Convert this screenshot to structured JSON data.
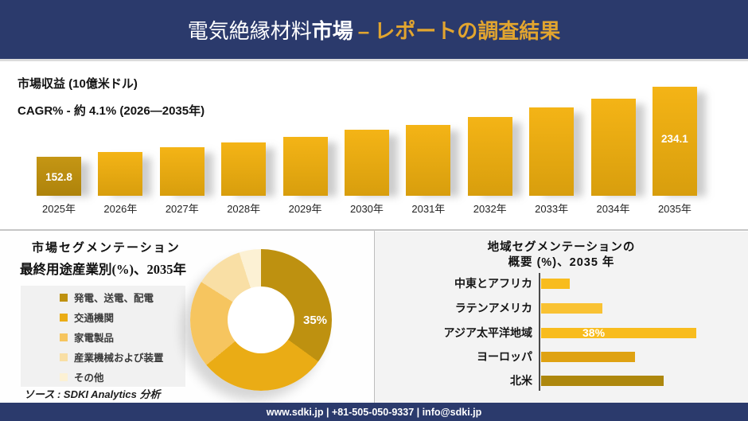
{
  "header": {
    "title_regular": "電気絶縁材料",
    "title_bold": "市場",
    "separator": "–",
    "title_accent": "レポートの調査結果",
    "bg_color": "#2B3A6C",
    "accent_color": "#E2A52F"
  },
  "chart_data": [
    {
      "id": "market-revenue-by-year",
      "type": "bar",
      "title": "市場収益 (10億米ドル)",
      "subtitle": "CAGR% - 約 4.1% (2026―2035年)",
      "categories": [
        "2025年",
        "2026年",
        "2027年",
        "2028年",
        "2029年",
        "2030年",
        "2031年",
        "2032年",
        "2033年",
        "2034年",
        "2035年"
      ],
      "values": [
        152.8,
        158.3,
        163.9,
        169.4,
        175.9,
        184.2,
        189.7,
        199.0,
        210.1,
        220.2,
        234.1
      ],
      "point_labels": {
        "0": "152.8",
        "10": "234.1"
      },
      "axis_hidden": true,
      "baseline_truncated": true,
      "colors": {
        "first": [
          "#C59614",
          "#AE830B"
        ],
        "rest": [
          "#F4B416",
          "#D89E0D"
        ]
      },
      "value_label_color": "#ffffff"
    },
    {
      "id": "end-use-segmentation",
      "type": "pie",
      "title": "市場セグメンテーション",
      "subtitle": "最終用途産業別(%)、2035年",
      "labels": [
        "発電、送電、配電",
        "交通機関",
        "家電製品",
        "産業機械および装置",
        "その他"
      ],
      "slugs": [
        "power-generation-transmission-distribution",
        "transportation",
        "home-appliances",
        "industrial-machinery-equipment",
        "others"
      ],
      "values": [
        35,
        29,
        20,
        11,
        5
      ],
      "point_labels": {
        "0": "35%"
      },
      "colors": [
        "#BE9110",
        "#EAAC15",
        "#F6C55F",
        "#F9DFA5",
        "#FCF1D4"
      ],
      "donut": true,
      "legend_position": "left"
    },
    {
      "id": "regional-segmentation",
      "type": "bar",
      "orientation": "horizontal",
      "title_line1": "地域セグメンテーションの",
      "title_line2": "概要 (%)、2035 年",
      "categories": [
        "中東とアフリカ",
        "ラテンアメリカ",
        "アジア太平洋地域",
        "ヨーロッパ",
        "北米"
      ],
      "slugs": [
        "middle-east-africa",
        "latin-america",
        "asia-pacific",
        "europe",
        "north-america"
      ],
      "values": [
        7,
        15,
        38,
        23,
        30
      ],
      "point_labels": {
        "2": "38%"
      },
      "colors": [
        "#F8BC1E",
        "#F9C233",
        "#F8BC1E",
        "#DFA213",
        "#AD870E"
      ],
      "value_label_color": "#ffffff"
    }
  ],
  "source": {
    "text": "ソース : SDKI Analytics 分析"
  },
  "footer": {
    "text": "www.sdki.jp | +81-505-050-9337 | info@sdki.jp"
  }
}
